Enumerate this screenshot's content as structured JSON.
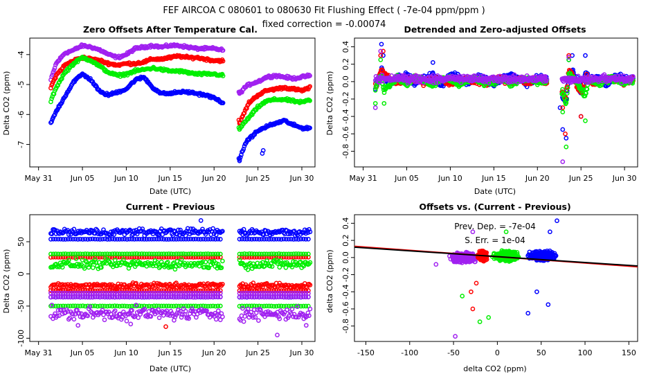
{
  "figure": {
    "title": "FEF   AIRCOA C   080601 to 080630   Fit Flushing Effect ( -7e-04 ppm/ppm )",
    "subtitle": "fixed correction = -0.00074"
  },
  "colors": {
    "blue": "#0000ff",
    "red": "#ff0000",
    "green": "#00ee00",
    "purple": "#a020f0",
    "black": "#000000"
  },
  "chart_data": [
    {
      "type": "scatter",
      "title": "Zero Offsets After Temperature Cal.",
      "xlabel": "Date (UTC)",
      "ylabel": "Delta CO2 (ppm)",
      "xlim": [
        -1,
        31.5
      ],
      "ylim": [
        -7.75,
        -3.45
      ],
      "xticks": [
        0,
        5,
        10,
        15,
        20,
        25,
        30
      ],
      "xtick_labels": [
        "May 31",
        "Jun 05",
        "Jun 10",
        "Jun 15",
        "Jun 20",
        "Jun 25",
        "Jun 30"
      ],
      "yticks": [
        -7,
        -6,
        -5,
        -4
      ],
      "ytick_labels": [
        "-7",
        "-6",
        "-5",
        "-4"
      ],
      "series": [
        {
          "name": "purple",
          "x": [
            1.4,
            2,
            3,
            4,
            5,
            6,
            7,
            8,
            9,
            10,
            11,
            12,
            13,
            14,
            15,
            16,
            17,
            18,
            19,
            20,
            21,
            22.9,
            23.5,
            24,
            25,
            26,
            27,
            28,
            29,
            30,
            31
          ],
          "y": [
            -4.85,
            -4.3,
            -3.95,
            -3.85,
            -3.7,
            -3.75,
            -3.85,
            -4.0,
            -4.1,
            -4.0,
            -3.8,
            -3.75,
            -3.7,
            -3.75,
            -3.7,
            -3.7,
            -3.75,
            -3.8,
            -3.8,
            -3.8,
            -3.85,
            -5.3,
            -5.1,
            -5.0,
            -4.9,
            -4.75,
            -4.7,
            -4.75,
            -4.8,
            -4.75,
            -4.7
          ]
        },
        {
          "name": "red",
          "x": [
            1.4,
            2,
            3,
            4,
            5,
            6,
            7,
            8,
            9,
            10,
            11,
            12,
            13,
            14,
            15,
            16,
            17,
            18,
            19,
            20,
            21,
            22.9,
            23.5,
            24,
            25,
            26,
            27,
            28,
            29,
            30,
            31
          ],
          "y": [
            -5.1,
            -4.7,
            -4.35,
            -4.2,
            -4.1,
            -4.15,
            -4.2,
            -4.3,
            -4.35,
            -4.3,
            -4.3,
            -4.25,
            -4.15,
            -4.15,
            -4.1,
            -4.05,
            -4.1,
            -4.1,
            -4.15,
            -4.2,
            -4.2,
            -6.3,
            -5.9,
            -5.6,
            -5.35,
            -5.2,
            -5.15,
            -5.1,
            -5.15,
            -5.2,
            -5.1
          ]
        },
        {
          "name": "green",
          "x": [
            1.4,
            2,
            3,
            4,
            5,
            6,
            7,
            8,
            9,
            10,
            11,
            12,
            13,
            14,
            15,
            16,
            17,
            18,
            19,
            20,
            21,
            22.9,
            23.5,
            24,
            25,
            26,
            27,
            28,
            29,
            30,
            31
          ],
          "y": [
            -5.55,
            -5.1,
            -4.6,
            -4.3,
            -4.1,
            -4.2,
            -4.4,
            -4.6,
            -4.7,
            -4.65,
            -4.55,
            -4.5,
            -4.45,
            -4.5,
            -4.55,
            -4.55,
            -4.6,
            -4.65,
            -4.65,
            -4.65,
            -4.7,
            -6.5,
            -6.25,
            -6.1,
            -5.75,
            -5.55,
            -5.5,
            -5.5,
            -5.55,
            -5.6,
            -5.5
          ]
        },
        {
          "name": "blue",
          "x": [
            1.4,
            2,
            3,
            4,
            5,
            6,
            7,
            8,
            9,
            10,
            11,
            12,
            13,
            14,
            15,
            16,
            17,
            18,
            19,
            20,
            21,
            22.9,
            23.5,
            24,
            25,
            26,
            27,
            28,
            29,
            30,
            31
          ],
          "y": [
            -6.3,
            -5.9,
            -5.4,
            -4.9,
            -4.65,
            -4.85,
            -5.25,
            -5.35,
            -5.25,
            -5.15,
            -4.85,
            -4.75,
            -5.1,
            -5.3,
            -5.3,
            -5.25,
            -5.25,
            -5.3,
            -5.35,
            -5.45,
            -5.6,
            -7.55,
            -7.0,
            -6.8,
            -6.55,
            -6.4,
            -6.3,
            -6.2,
            -6.35,
            -6.45,
            -6.45
          ]
        }
      ]
    },
    {
      "type": "scatter",
      "title": "Detrended and Zero-adjusted Offsets",
      "xlabel": "Date (UTC)",
      "ylabel": "Delta CO2 (ppm)",
      "xlim": [
        -1,
        31.5
      ],
      "ylim": [
        -0.98,
        0.5
      ],
      "xticks": [
        0,
        5,
        10,
        15,
        20,
        25,
        30
      ],
      "xtick_labels": [
        "May 31",
        "Jun 05",
        "Jun 10",
        "Jun 15",
        "Jun 20",
        "Jun 25",
        "Jun 30"
      ],
      "yticks": [
        -0.8,
        -0.6,
        -0.4,
        -0.2,
        0.0,
        0.2,
        0.4
      ],
      "ytick_labels": [
        "-0.8",
        "-0.6",
        "-0.4",
        "-0.2",
        "0.0",
        "0.2",
        "0.4"
      ],
      "series": [
        {
          "name": "blue",
          "x": [
            1.4,
            1.8,
            2.1,
            2.3,
            2.6,
            3,
            4,
            5,
            6,
            7,
            8,
            9,
            10,
            11,
            12,
            13,
            14,
            15,
            16,
            17,
            18,
            19,
            20,
            21,
            22.6,
            22.9,
            23.3,
            23.6,
            24,
            24.5,
            25,
            25.5,
            26,
            27,
            28,
            29,
            30,
            31
          ],
          "y": [
            -0.2,
            0.05,
            0.43,
            0.3,
            0.05,
            -0.1,
            0.15,
            0.2,
            -0.05,
            0.1,
            0.22,
            -0.1,
            0.2,
            0.15,
            -0.05,
            0.2,
            0.1,
            -0.1,
            0.15,
            0.2,
            0.05,
            -0.1,
            0.15,
            0.1,
            -0.3,
            -0.55,
            -0.65,
            0.25,
            0.3,
            0.1,
            -0.4,
            0.3,
            0.05,
            0.15,
            -0.1,
            0.2,
            0.1,
            0.1
          ]
        },
        {
          "name": "red",
          "x": [
            1.4,
            2,
            2.3,
            3,
            4,
            5,
            6,
            7,
            8,
            9,
            10,
            11,
            12,
            13,
            14,
            15,
            16,
            17,
            18,
            19,
            20,
            21,
            22.9,
            23.2,
            23.6,
            24,
            25,
            25.6,
            26,
            27,
            28,
            29,
            30,
            31
          ],
          "y": [
            -0.15,
            0.3,
            0.35,
            0.1,
            -0.05,
            0.05,
            0.1,
            -0.05,
            0.05,
            0.1,
            -0.05,
            0.05,
            0.1,
            0.0,
            -0.05,
            0.1,
            0.05,
            -0.05,
            0.1,
            0.0,
            0.05,
            -0.05,
            -0.3,
            -0.6,
            0.3,
            0.2,
            -0.4,
            0.15,
            0.05,
            -0.05,
            0.1,
            0.05,
            -0.05,
            0.1
          ]
        },
        {
          "name": "green",
          "x": [
            1.4,
            2,
            2.4,
            3,
            4,
            5,
            6,
            7,
            8,
            9,
            10,
            11,
            12,
            13,
            14,
            15,
            16,
            17,
            18,
            19,
            20,
            21,
            22.9,
            23.3,
            23.6,
            24,
            25.5,
            26,
            27,
            28,
            29,
            30,
            31
          ],
          "y": [
            -0.25,
            0.25,
            -0.25,
            -0.1,
            0.15,
            -0.1,
            0.15,
            0.05,
            -0.1,
            0.1,
            0.05,
            -0.1,
            0.05,
            0.1,
            -0.05,
            0.0,
            0.1,
            -0.1,
            0.05,
            0.1,
            -0.05,
            0.0,
            -0.35,
            -0.75,
            0.25,
            0.15,
            -0.45,
            0.1,
            -0.1,
            0.05,
            0.1,
            -0.05,
            0.05
          ]
        },
        {
          "name": "purple",
          "x": [
            1.4,
            2,
            2.4,
            3,
            4,
            5,
            6,
            7,
            8,
            9,
            10,
            11,
            12,
            13,
            14,
            15,
            16,
            17,
            18,
            19,
            20,
            21,
            22.9,
            23.2,
            23.6,
            24,
            25.5,
            26,
            27,
            28,
            29,
            30,
            31
          ],
          "y": [
            -0.3,
            0.35,
            0.15,
            0.05,
            0.0,
            0.05,
            0.0,
            0.05,
            0.0,
            0.05,
            0.0,
            0.05,
            0.0,
            0.05,
            0.0,
            0.05,
            0.0,
            0.05,
            0.0,
            0.05,
            0.0,
            0.05,
            -0.92,
            -0.2,
            0.28,
            0.1,
            -0.05,
            0.05,
            0.0,
            0.05,
            0.0,
            0.05,
            0.05
          ]
        }
      ]
    },
    {
      "type": "scatter",
      "title": "Current - Previous",
      "xlabel": "Date (UTC)",
      "ylabel": "Delta CO2 (ppm)",
      "xlim": [
        -1,
        31.5
      ],
      "ylim": [
        -105,
        92
      ],
      "xticks": [
        0,
        5,
        10,
        15,
        20,
        25,
        30
      ],
      "xtick_labels": [
        "May 31",
        "Jun 05",
        "Jun 10",
        "Jun 15",
        "Jun 20",
        "Jun 25",
        "Jun 30"
      ],
      "yticks": [
        -100,
        -50,
        0,
        50
      ],
      "ytick_labels": [
        "-100",
        "-50",
        "0",
        "50"
      ],
      "bands": [
        {
          "name": "blue",
          "level": 54
        },
        {
          "name": "blue",
          "level": -36
        },
        {
          "name": "red",
          "level": 26
        },
        {
          "name": "red",
          "level": -26
        },
        {
          "name": "green",
          "level": 31
        },
        {
          "name": "green",
          "level": -50
        },
        {
          "name": "purple",
          "level": -30
        },
        {
          "name": "purple",
          "level": -36
        }
      ],
      "clusters": [
        {
          "name": "blue",
          "center": 65,
          "spread": 8
        },
        {
          "name": "green",
          "center": 15,
          "spread": 10
        },
        {
          "name": "red",
          "center": -18,
          "spread": 6
        },
        {
          "name": "purple",
          "center": -62,
          "spread": 14
        }
      ],
      "outliers": [
        {
          "name": "blue",
          "x": 18.5,
          "y": 83
        },
        {
          "name": "red",
          "x": 14.5,
          "y": -82
        },
        {
          "name": "purple",
          "x": 27.2,
          "y": -95
        },
        {
          "name": "purple",
          "x": 4.5,
          "y": -80
        },
        {
          "name": "purple",
          "x": 10.5,
          "y": -78
        },
        {
          "name": "purple",
          "x": 30.5,
          "y": -80
        }
      ]
    },
    {
      "type": "scatter",
      "title": "Offsets vs. (Current - Previous)",
      "xlabel": "delta CO2 (ppm)",
      "ylabel": "delta CO2 (ppm)",
      "xlim": [
        -163,
        160
      ],
      "ylim": [
        -0.98,
        0.5
      ],
      "xticks": [
        -150,
        -100,
        -50,
        0,
        50,
        100,
        150
      ],
      "xtick_labels": [
        "-150",
        "-100",
        "-50",
        "0",
        "50",
        "100",
        "150"
      ],
      "yticks": [
        -0.8,
        -0.6,
        -0.4,
        -0.2,
        0.0,
        0.2,
        0.4
      ],
      "ytick_labels": [
        "-0.8",
        "-0.6",
        "-0.4",
        "-0.2",
        "0.0",
        "0.2",
        "0.4"
      ],
      "annotations": [
        "Prev. Dep. =  -7e-04",
        "S. Err. =  1e-04"
      ],
      "fit_lines": [
        {
          "name": "red",
          "slope": -0.00074,
          "intercept": 0.01
        },
        {
          "name": "black",
          "slope": -0.00068,
          "intercept": 0.01
        }
      ],
      "clusters": [
        {
          "name": "purple",
          "x_center": -38,
          "x_spread": 18,
          "y_center": 0.0
        },
        {
          "name": "red",
          "x_center": -17,
          "x_spread": 6,
          "y_center": 0.02
        },
        {
          "name": "green",
          "x_center": 10,
          "x_spread": 18,
          "y_center": 0.02
        },
        {
          "name": "blue",
          "x_center": 52,
          "x_spread": 18,
          "y_center": 0.02
        }
      ],
      "outliers": [
        {
          "name": "purple",
          "x": -48,
          "y": -0.92
        },
        {
          "name": "purple",
          "x": -70,
          "y": -0.08
        },
        {
          "name": "green",
          "x": -20,
          "y": -0.75
        },
        {
          "name": "green",
          "x": -10,
          "y": -0.7
        },
        {
          "name": "green",
          "x": -40,
          "y": -0.45
        },
        {
          "name": "red",
          "x": -28,
          "y": -0.6
        },
        {
          "name": "red",
          "x": -24,
          "y": -0.3
        },
        {
          "name": "red",
          "x": -30,
          "y": -0.4
        },
        {
          "name": "blue",
          "x": 35,
          "y": -0.65
        },
        {
          "name": "blue",
          "x": 58,
          "y": -0.55
        },
        {
          "name": "blue",
          "x": 45,
          "y": -0.4
        },
        {
          "name": "blue",
          "x": 68,
          "y": 0.43
        },
        {
          "name": "green",
          "x": 10,
          "y": 0.3
        },
        {
          "name": "purple",
          "x": -28,
          "y": 0.3
        },
        {
          "name": "blue",
          "x": 60,
          "y": 0.3
        }
      ]
    }
  ]
}
